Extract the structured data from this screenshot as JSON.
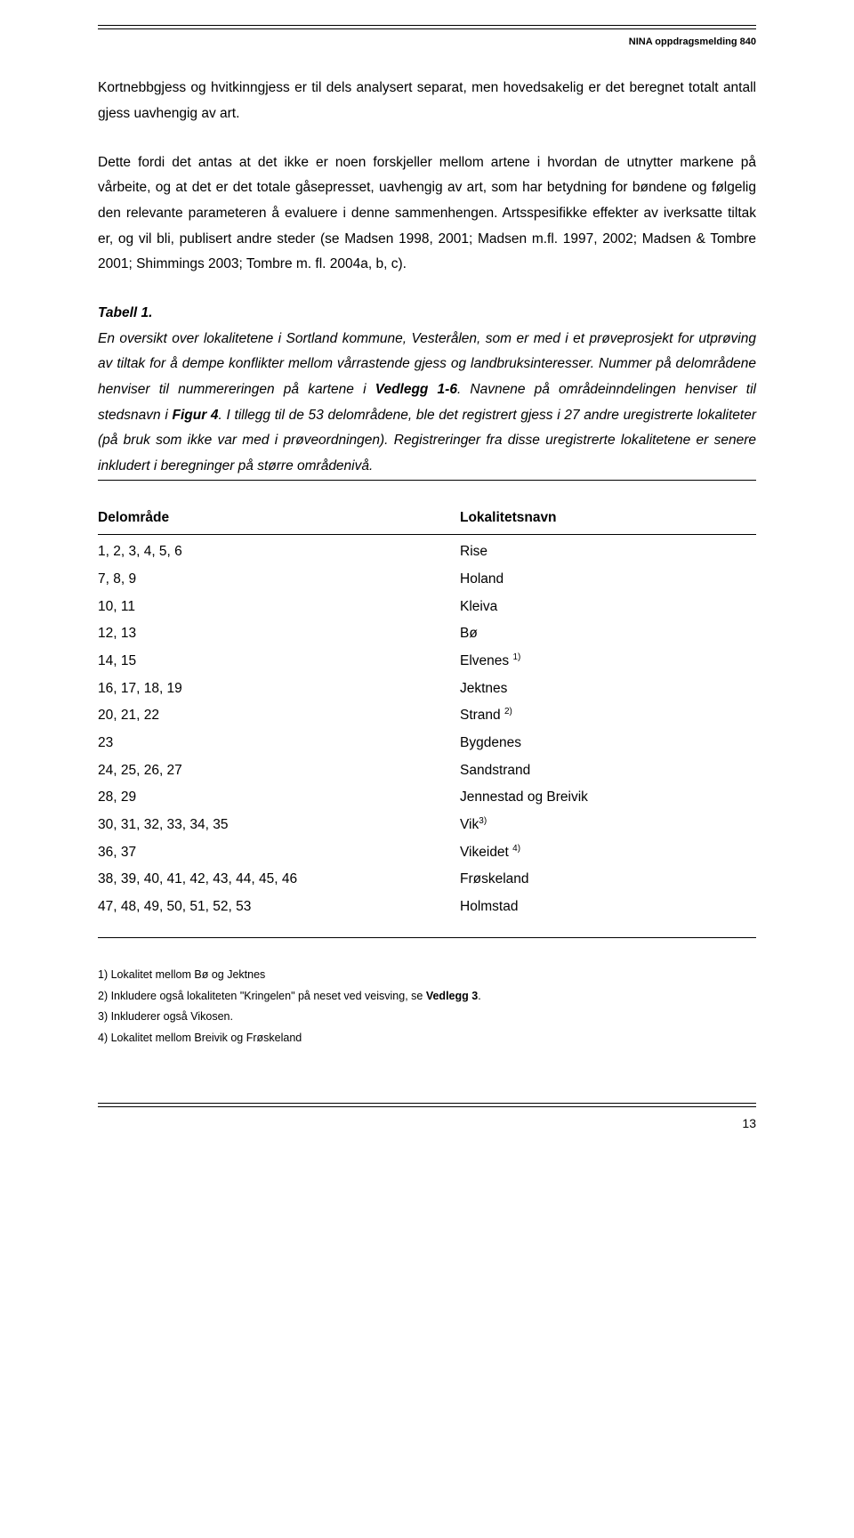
{
  "header": {
    "label": "NINA oppdragsmelding 840"
  },
  "para1": "Kortnebbgjess og hvitkinngjess er til dels analysert separat, men hovedsakelig er det beregnet totalt antall gjess uavhengig av art.",
  "para2": "Dette fordi det antas at det ikke er noen forskjeller mellom artene i hvordan de utnytter markene på vårbeite, og at det er det totale gåsepresset, uavhengig av art, som har betydning for bøndene og følgelig den relevante parameteren å evaluere i denne sammenhengen. Artsspesifikke effekter av iverksatte tiltak er, og vil bli, publisert andre steder (se Madsen 1998, 2001; Madsen m.fl. 1997, 2002; Madsen & Tombre 2001; Shimmings 2003; Tombre m. fl. 2004a, b, c).",
  "tabell": {
    "title": "Tabell 1.",
    "body_pre": "En oversikt over lokalitetene i Sortland kommune, Vesterålen, som er med i et prøveprosjekt for utprøving av tiltak for å dempe konflikter mellom vårrastende gjess og landbruksinteresser. Nummer på delområdene henviser til nummereringen på kartene i ",
    "bold1": "Vedlegg 1-6",
    "body_mid1": ". Navnene på områdeinndelingen henviser til stedsnavn i ",
    "bold2": "Figur 4",
    "body_post": ". I tillegg til de 53 delområdene, ble det registrert gjess i 27 andre uregistrerte lokaliteter (på bruk som ikke var med i prøveordningen). Registreringer fra disse uregistrerte lokalitetene er senere inkludert i beregninger på større områdenivå."
  },
  "table": {
    "header": {
      "col_a": "Delområde",
      "col_b": "Lokalitetsnavn"
    },
    "rows": [
      {
        "a": "1, 2, 3, 4, 5, 6",
        "b": "Rise",
        "sup": ""
      },
      {
        "a": "7, 8, 9",
        "b": "Holand",
        "sup": ""
      },
      {
        "a": "10, 11",
        "b": "Kleiva",
        "sup": ""
      },
      {
        "a": "12, 13",
        "b": "Bø",
        "sup": ""
      },
      {
        "a": "14, 15",
        "b": "Elvenes ",
        "sup": "1)"
      },
      {
        "a": "16, 17, 18, 19",
        "b": "Jektnes",
        "sup": ""
      },
      {
        "a": "20, 21, 22",
        "b": "Strand ",
        "sup": "2)"
      },
      {
        "a": "23",
        "b": "Bygdenes",
        "sup": ""
      },
      {
        "a": "24, 25, 26, 27",
        "b": "Sandstrand",
        "sup": ""
      },
      {
        "a": "28, 29",
        "b": "Jennestad og Breivik",
        "sup": ""
      },
      {
        "a": "30, 31, 32, 33, 34, 35",
        "b": "Vik",
        "sup": "3)"
      },
      {
        "a": "36, 37",
        "b": "Vikeidet ",
        "sup": "4)"
      },
      {
        "a": "38, 39, 40, 41, 42, 43, 44, 45, 46",
        "b": "Frøskeland",
        "sup": ""
      },
      {
        "a": "47, 48, 49, 50, 51, 52, 53",
        "b": "Holmstad",
        "sup": ""
      }
    ]
  },
  "footnotes": {
    "n1": "1) Lokalitet mellom Bø og Jektnes",
    "n2_pre": "2) Inkludere også lokaliteten \"Kringelen\" på neset ved veisving, se ",
    "n2_bold": "Vedlegg 3",
    "n2_post": ".",
    "n3": "3) Inkluderer også Vikosen.",
    "n4": "4) Lokalitet mellom Breivik og Frøskeland"
  },
  "page_number": "13"
}
